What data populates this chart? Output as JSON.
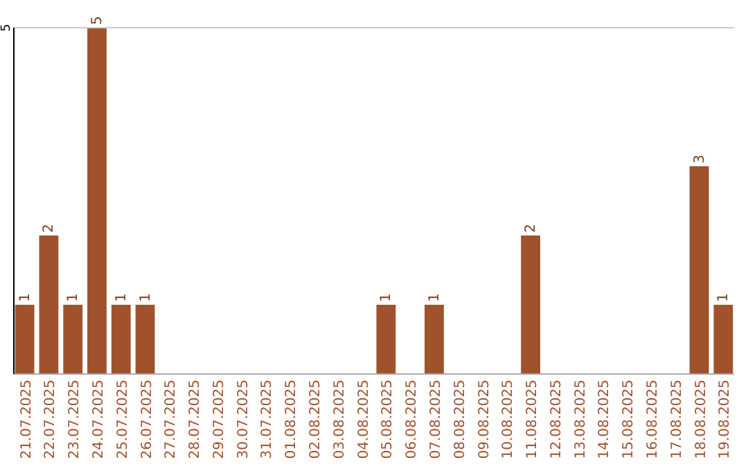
{
  "chart_data": {
    "type": "bar",
    "categories": [
      "21.07.2025",
      "22.07.2025",
      "23.07.2025",
      "24.07.2025",
      "25.07.2025",
      "26.07.2025",
      "27.07.2025",
      "28.07.2025",
      "29.07.2025",
      "30.07.2025",
      "31.07.2025",
      "01.08.2025",
      "02.08.2025",
      "03.08.2025",
      "04.08.2025",
      "05.08.2025",
      "06.08.2025",
      "07.08.2025",
      "08.08.2025",
      "09.08.2025",
      "10.08.2025",
      "11.08.2025",
      "12.08.2025",
      "13.08.2025",
      "14.08.2025",
      "15.08.2025",
      "16.08.2025",
      "17.08.2025",
      "18.08.2025",
      "19.08.2025"
    ],
    "values": [
      1,
      2,
      1,
      5,
      1,
      1,
      0,
      0,
      0,
      0,
      0,
      0,
      0,
      0,
      0,
      1,
      0,
      1,
      0,
      0,
      0,
      2,
      0,
      0,
      0,
      0,
      0,
      0,
      3,
      1
    ],
    "value_labels": [
      "1",
      "2",
      "1",
      "5",
      "1",
      "1",
      null,
      null,
      null,
      null,
      null,
      null,
      null,
      null,
      null,
      "1",
      null,
      "1",
      null,
      null,
      null,
      "2",
      null,
      null,
      null,
      null,
      null,
      null,
      "3",
      "1"
    ],
    "color": "#a0522d",
    "ylim": [
      0,
      5
    ],
    "yticks": [
      5
    ]
  }
}
